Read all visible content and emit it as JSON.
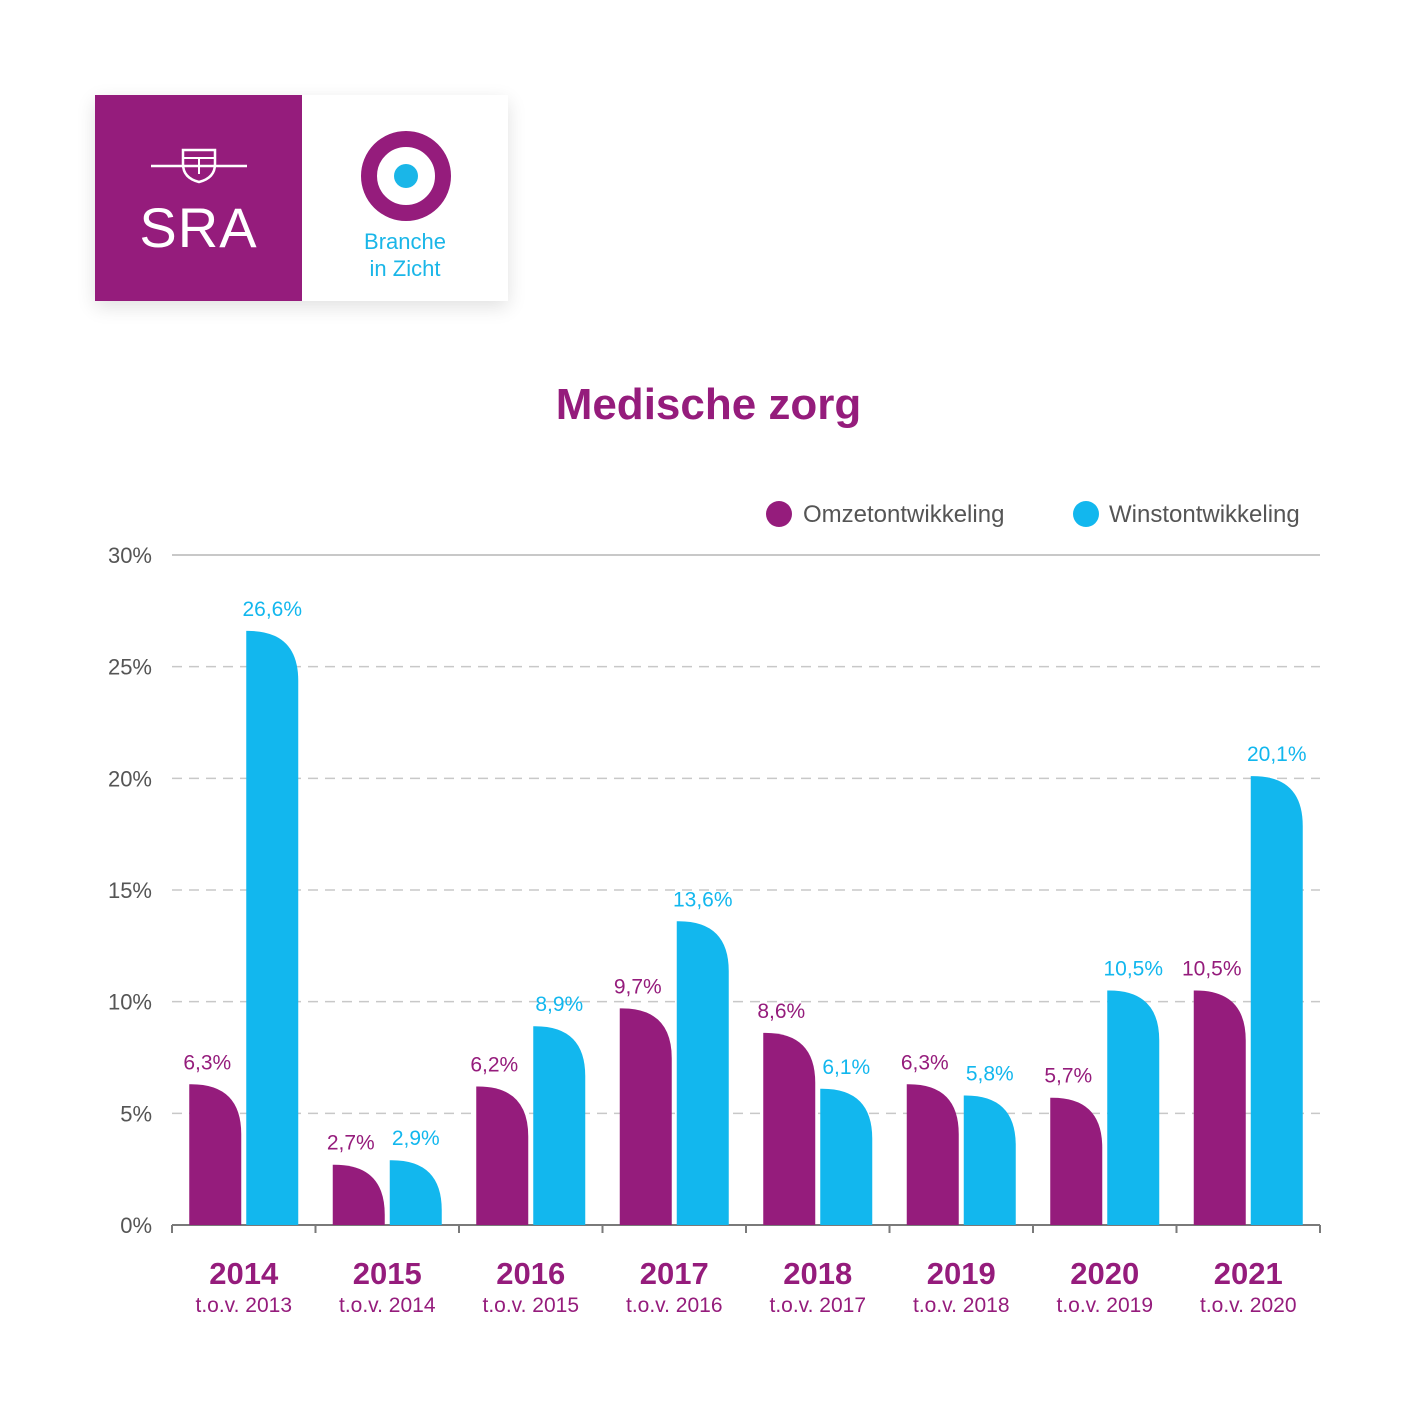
{
  "logo": {
    "sra_text": "SRA",
    "branche_line1": "Branche",
    "branche_line2": "in Zicht"
  },
  "colors": {
    "omzet": "#951c7c",
    "winst": "#12b7ee",
    "axis": "#555555",
    "grid": "#c8c8c8",
    "brand_purple": "#951c7c",
    "brand_blue": "#1ab6e8"
  },
  "chart_data": {
    "type": "bar",
    "title": "Medische zorg",
    "categories": [
      "2014",
      "2015",
      "2016",
      "2017",
      "2018",
      "2019",
      "2020",
      "2021"
    ],
    "subcategories": [
      "t.o.v. 2013",
      "t.o.v. 2014",
      "t.o.v. 2015",
      "t.o.v. 2016",
      "t.o.v. 2017",
      "t.o.v. 2018",
      "t.o.v. 2019",
      "t.o.v. 2020"
    ],
    "series": [
      {
        "name": "Omzetontwikkeling",
        "values": [
          6.3,
          2.7,
          6.2,
          9.7,
          8.6,
          6.3,
          5.7,
          10.5
        ],
        "labels": [
          "6,3%",
          "2,7%",
          "6,2%",
          "9,7%",
          "8,6%",
          "6,3%",
          "5,7%",
          "10,5%"
        ]
      },
      {
        "name": "Winstontwikkeling",
        "values": [
          26.6,
          2.9,
          8.9,
          13.6,
          6.1,
          5.8,
          10.5,
          20.1
        ],
        "labels": [
          "26,6%",
          "2,9%",
          "8,9%",
          "13,6%",
          "6,1%",
          "5,8%",
          "10,5%",
          "20,1%"
        ]
      }
    ],
    "yticks": [
      0,
      5,
      10,
      15,
      20,
      25,
      30
    ],
    "ytick_labels": [
      "0%",
      "5%",
      "10%",
      "15%",
      "20%",
      "25%",
      "30%"
    ],
    "ylim": [
      0,
      30
    ],
    "grid": true,
    "legend": "top-right"
  }
}
